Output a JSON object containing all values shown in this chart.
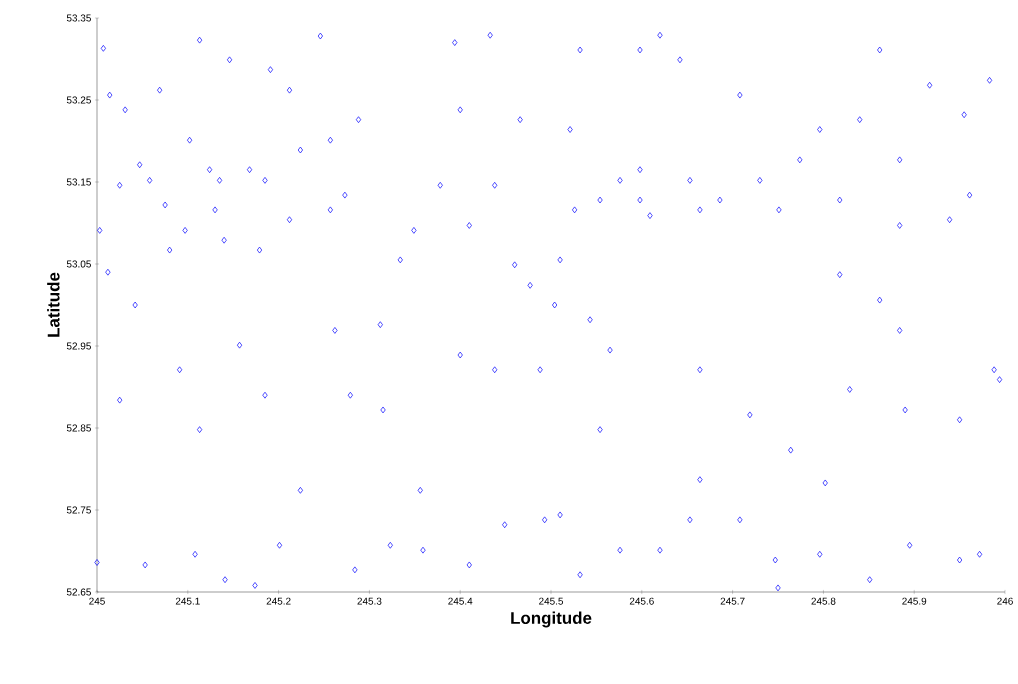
{
  "chart_data": {
    "type": "scatter",
    "xlabel": "Longitude",
    "ylabel": "Latitude",
    "marker": "diamond",
    "grid": false,
    "xlim": [
      245,
      246
    ],
    "ylim": [
      52.65,
      53.35
    ],
    "xticks": [
      245,
      245.1,
      245.2,
      245.3,
      245.4,
      245.5,
      245.6,
      245.7,
      245.8,
      245.9,
      246
    ],
    "yticks": [
      52.65,
      52.75,
      52.85,
      52.95,
      53.05,
      53.15,
      53.25,
      53.35
    ],
    "series": [
      {
        "color": "#0000ff",
        "x": [
          245.0,
          245.007,
          245.003,
          245.012,
          245.025,
          245.031,
          245.042,
          245.058,
          245.069,
          245.08,
          245.102,
          245.113,
          245.124,
          245.135,
          245.13,
          245.146,
          245.168,
          245.185,
          245.191,
          245.224,
          245.212,
          245.025,
          245.091,
          245.113,
          245.108,
          245.053,
          245.157,
          245.185,
          245.224,
          245.246,
          245.257,
          245.273,
          245.288,
          245.262,
          245.279,
          245.284,
          245.312,
          245.334,
          245.315,
          245.349,
          245.356,
          245.378,
          245.394,
          245.4,
          245.4,
          245.41,
          245.433,
          245.438,
          245.449,
          245.438,
          245.466,
          245.477,
          245.488,
          245.51,
          245.532,
          245.526,
          245.554,
          245.576,
          245.598,
          245.598,
          245.565,
          245.598,
          245.62,
          245.609,
          245.642,
          245.653,
          245.664,
          245.686,
          245.554,
          245.576,
          245.62,
          245.653,
          245.664,
          245.708,
          245.73,
          245.751,
          245.774,
          245.796,
          245.818,
          245.818,
          245.84,
          245.829,
          245.862,
          245.862,
          245.884,
          245.89,
          245.884,
          245.939,
          245.95,
          245.955,
          245.983,
          245.994,
          245.988,
          245.972,
          245.95,
          245.895,
          245.851,
          245.796,
          245.75,
          245.708,
          245.747,
          245.802,
          245.764,
          245.664,
          245.719,
          245.51,
          245.493,
          245.532,
          245.41,
          245.359,
          245.323,
          245.174,
          245.141,
          245.201,
          245.014,
          245.047,
          245.075,
          245.097,
          245.14,
          245.179,
          245.212,
          245.257,
          245.521,
          245.504,
          245.543,
          245.46,
          245.884,
          245.917,
          245.961
        ],
        "values": [
          52.686,
          53.313,
          53.091,
          53.04,
          53.146,
          53.238,
          53.0,
          53.152,
          53.262,
          53.067,
          53.201,
          53.323,
          53.165,
          53.152,
          53.116,
          53.299,
          53.165,
          53.152,
          53.287,
          53.189,
          53.262,
          52.884,
          52.921,
          52.848,
          52.696,
          52.683,
          52.951,
          52.89,
          52.774,
          53.328,
          53.116,
          53.134,
          53.226,
          52.969,
          52.89,
          52.677,
          52.976,
          53.055,
          52.872,
          53.091,
          52.774,
          53.146,
          53.32,
          53.238,
          52.939,
          53.097,
          53.329,
          53.146,
          52.732,
          52.921,
          53.226,
          53.024,
          52.921,
          53.055,
          53.311,
          53.116,
          53.128,
          53.152,
          53.128,
          53.311,
          52.945,
          53.165,
          53.329,
          53.109,
          53.299,
          53.152,
          53.116,
          53.128,
          52.848,
          52.701,
          52.701,
          52.738,
          52.921,
          53.256,
          53.152,
          53.116,
          53.177,
          53.214,
          53.128,
          53.037,
          53.226,
          52.897,
          53.006,
          53.311,
          53.097,
          52.872,
          52.969,
          53.104,
          52.86,
          53.232,
          53.274,
          52.909,
          52.921,
          52.696,
          52.689,
          52.707,
          52.665,
          52.696,
          52.655,
          52.738,
          52.689,
          52.783,
          52.823,
          52.787,
          52.866,
          52.744,
          52.738,
          52.671,
          52.683,
          52.701,
          52.707,
          52.658,
          52.665,
          52.707,
          53.256,
          53.171,
          53.122,
          53.091,
          53.079,
          53.067,
          53.104,
          53.201,
          53.214,
          53.0,
          52.982,
          53.049,
          53.177,
          53.268,
          53.134
        ]
      }
    ]
  }
}
